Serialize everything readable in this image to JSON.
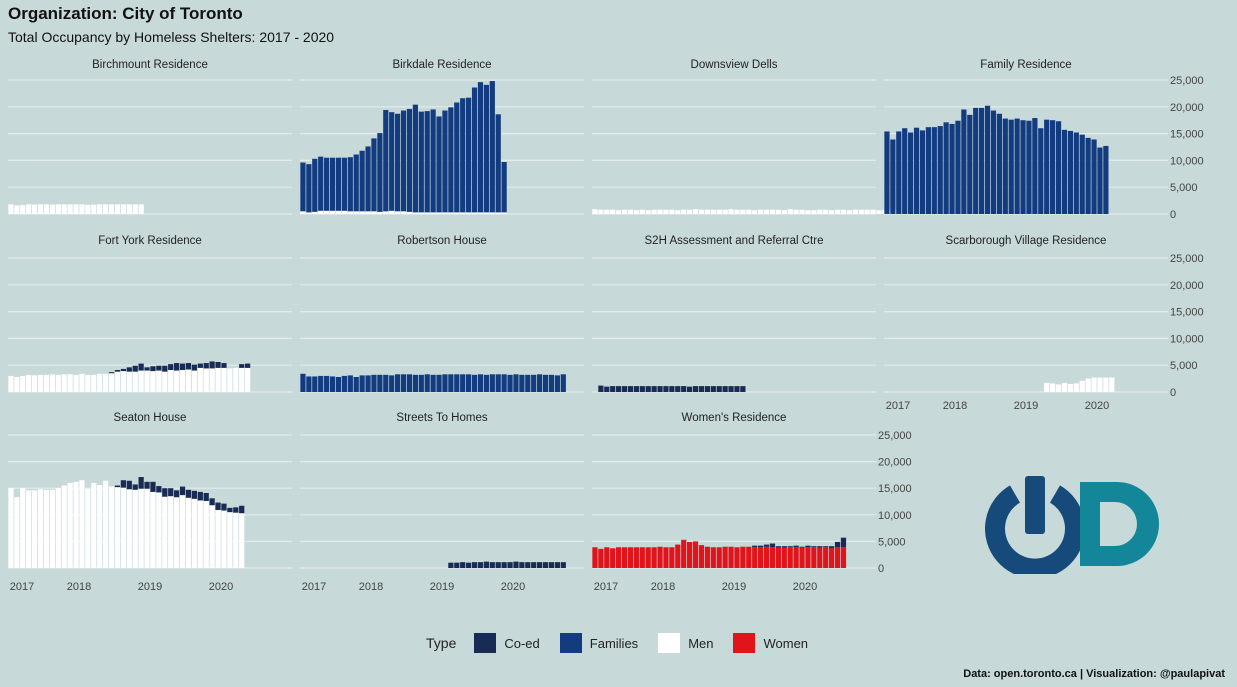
{
  "title": "Organization: City of Toronto",
  "subtitle": "Total Occupancy by Homeless Shelters: 2017 - 2020",
  "caption": "Data: open.toronto.ca | Visualization: @paulapivat",
  "legend": {
    "title": "Type",
    "items": [
      {
        "label": "Co-ed",
        "color": "#182b55"
      },
      {
        "label": "Families",
        "color": "#123b80"
      },
      {
        "label": "Men",
        "color": "#ffffff"
      },
      {
        "label": "Women",
        "color": "#e0141b"
      }
    ]
  },
  "logo": {
    "icon": "power-d-logo",
    "colors": [
      "#154a7a",
      "#13869a"
    ]
  },
  "chart_data": {
    "type": "bar",
    "stacked": true,
    "x_ticks": [
      "2017",
      "2018",
      "2019",
      "2020"
    ],
    "ylim": [
      0,
      25000
    ],
    "y_ticks": [
      "0",
      "5,000",
      "10,000",
      "15,000",
      "20,000",
      "25,000"
    ],
    "grid": true,
    "legend_position": "bottom",
    "facets": [
      {
        "name": "Birchmount Residence",
        "start": 0,
        "series": [
          {
            "name": "Men",
            "values": [
              1800,
              1600,
              1700,
              1800,
              1750,
              1800,
              1800,
              1750,
              1800,
              1800,
              1800,
              1800,
              1800,
              1700,
              1750,
              1800,
              1800,
              1800,
              1800,
              1800,
              1800,
              1800,
              1800
            ]
          }
        ]
      },
      {
        "name": "Birkdale Residence",
        "start": 0,
        "series": [
          {
            "name": "Men",
            "values": [
              500,
              300,
              400,
              600,
              600,
              600,
              600,
              600,
              500,
              500,
              500,
              500,
              500,
              400,
              500,
              600,
              500,
              500,
              400,
              300,
              300,
              300,
              300,
              300,
              300,
              300,
              300,
              300,
              300,
              300,
              300,
              300,
              300,
              300,
              300
            ]
          },
          {
            "name": "Families",
            "values": [
              9100,
              9000,
              9900,
              10100,
              9900,
              9900,
              9900,
              9900,
              10100,
              10600,
              11300,
              12100,
              13600,
              14700,
              18900,
              18400,
              18200,
              18800,
              19200,
              20100,
              18800,
              18900,
              19200,
              17900,
              19000,
              19600,
              20500,
              21300,
              21400,
              23300,
              24300,
              23800,
              24500,
              18300,
              9400
            ]
          }
        ]
      },
      {
        "name": "Downsview Dells",
        "start": 0,
        "series": [
          {
            "name": "Men",
            "values": [
              900,
              800,
              800,
              800,
              700,
              800,
              800,
              700,
              800,
              700,
              800,
              800,
              800,
              800,
              700,
              800,
              800,
              900,
              800,
              800,
              800,
              800,
              800,
              900,
              800,
              800,
              800,
              700,
              800,
              800,
              800,
              800,
              700,
              900,
              800,
              800,
              700,
              700,
              800,
              800,
              700,
              800,
              800,
              700,
              800,
              800,
              800,
              800,
              700,
              800,
              700,
              700
            ]
          }
        ]
      },
      {
        "name": "Family Residence",
        "start": 0,
        "series": [
          {
            "name": "Families",
            "values": [
              15400,
              13900,
              15400,
              16000,
              15200,
              16100,
              15600,
              16200,
              16200,
              16400,
              17100,
              16800,
              17400,
              19500,
              18500,
              19800,
              19800,
              20200,
              19300,
              18700,
              17800,
              17600,
              17800,
              17500,
              17400,
              17900,
              16000,
              17600,
              17500,
              17300,
              15700,
              15500,
              15200,
              14800,
              14200,
              13900,
              12400,
              12700
            ]
          }
        ]
      },
      {
        "name": "Fort York Residence",
        "start": 0,
        "series": [
          {
            "name": "Men",
            "values": [
              3000,
              2800,
              3000,
              3200,
              3100,
              3200,
              3200,
              3300,
              3200,
              3300,
              3300,
              3200,
              3400,
              3200,
              3200,
              3400,
              3400,
              3500,
              3800,
              3900,
              3800,
              3800,
              4000,
              4000,
              3900,
              4000,
              3800,
              4100,
              4000,
              4100,
              4200,
              4000,
              4500,
              4400,
              4400,
              4500,
              4500,
              4400,
              4500,
              4500,
              4500
            ]
          },
          {
            "name": "Co-ed",
            "values": [
              0,
              0,
              0,
              0,
              0,
              0,
              0,
              0,
              0,
              0,
              0,
              0,
              0,
              0,
              0,
              0,
              0,
              200,
              300,
              400,
              800,
              1100,
              1300,
              600,
              900,
              900,
              1100,
              1100,
              1400,
              1200,
              1200,
              1100,
              800,
              1000,
              1300,
              1100,
              900,
              0,
              0,
              700,
              800
            ]
          }
        ]
      },
      {
        "name": "Robertson House",
        "start": 0,
        "series": [
          {
            "name": "Families",
            "values": [
              3400,
              2900,
              2900,
              3000,
              3000,
              2900,
              2800,
              3000,
              3100,
              2800,
              3100,
              3100,
              3200,
              3200,
              3200,
              3100,
              3300,
              3300,
              3300,
              3200,
              3200,
              3300,
              3200,
              3200,
              3300,
              3300,
              3300,
              3300,
              3300,
              3200,
              3300,
              3200,
              3300,
              3300,
              3300,
              3200,
              3300,
              3200,
              3200,
              3200,
              3300,
              3200,
              3200,
              3100,
              3300
            ]
          }
        ]
      },
      {
        "name": "S2H Assessment and Referral Ctre",
        "start": 1,
        "series": [
          {
            "name": "Co-ed",
            "values": [
              1200,
              1000,
              1100,
              1100,
              1100,
              1100,
              1100,
              1100,
              1100,
              1100,
              1100,
              1100,
              1100,
              1100,
              1100,
              1000,
              1100,
              1100,
              1100,
              1100,
              1100,
              1100,
              1100,
              1100,
              1100
            ]
          }
        ]
      },
      {
        "name": "Scarborough Village Residence",
        "start": 27,
        "series": [
          {
            "name": "Men",
            "values": [
              1700,
              1600,
              1400,
              1700,
              1500,
              1600,
              2100,
              2500,
              2700,
              2700,
              2700,
              2700
            ]
          }
        ]
      },
      {
        "name": "Seaton House",
        "start": 0,
        "series": [
          {
            "name": "Men",
            "values": [
              15000,
              13300,
              15000,
              14600,
              14600,
              14800,
              14700,
              14700,
              15000,
              15500,
              16000,
              16200,
              16500,
              14900,
              16000,
              15600,
              16400,
              15300,
              15200,
              15100,
              14800,
              14700,
              14900,
              14900,
              14300,
              14200,
              13400,
              13500,
              13300,
              13700,
              13200,
              13000,
              12700,
              12600,
              11800,
              10900,
              10800,
              10500,
              10400,
              10300
            ]
          },
          {
            "name": "Co-ed",
            "values": [
              0,
              0,
              0,
              0,
              0,
              0,
              0,
              0,
              0,
              0,
              0,
              0,
              0,
              0,
              0,
              0,
              0,
              0,
              300,
              1400,
              1600,
              1000,
              2200,
              1300,
              1900,
              1200,
              1600,
              1500,
              1300,
              1600,
              1500,
              1500,
              1600,
              1500,
              1300,
              1400,
              1300,
              800,
              1000,
              1400
            ]
          }
        ]
      },
      {
        "name": "Streets To Homes",
        "start": 25,
        "series": [
          {
            "name": "Co-ed",
            "values": [
              1000,
              1000,
              1100,
              1000,
              1100,
              1100,
              1200,
              1100,
              1100,
              1100,
              1100,
              1200,
              1100,
              1100,
              1100,
              1100,
              1100,
              1100,
              1100,
              1100
            ]
          }
        ]
      },
      {
        "name": "Women's Residence",
        "start": 0,
        "series": [
          {
            "name": "Women",
            "values": [
              3900,
              3600,
              3900,
              3700,
              3900,
              3900,
              3900,
              3900,
              3900,
              3900,
              3900,
              4000,
              3900,
              3900,
              4400,
              5300,
              4900,
              5000,
              4300,
              4000,
              3900,
              3900,
              4000,
              4000,
              3900,
              4000,
              4000,
              3900,
              3900,
              4000,
              3900,
              3800,
              3800,
              3900,
              3900,
              3800,
              3900,
              3900,
              3800,
              3900,
              3700,
              3900,
              3900
            ]
          },
          {
            "name": "Co-ed",
            "values": [
              0,
              0,
              0,
              0,
              0,
              0,
              0,
              0,
              0,
              0,
              0,
              0,
              0,
              0,
              0,
              0,
              0,
              0,
              0,
              0,
              0,
              0,
              0,
              0,
              0,
              0,
              0,
              300,
              300,
              400,
              700,
              300,
              300,
              200,
              300,
              200,
              300,
              200,
              300,
              200,
              400,
              1000,
              1800
            ]
          }
        ]
      }
    ]
  }
}
